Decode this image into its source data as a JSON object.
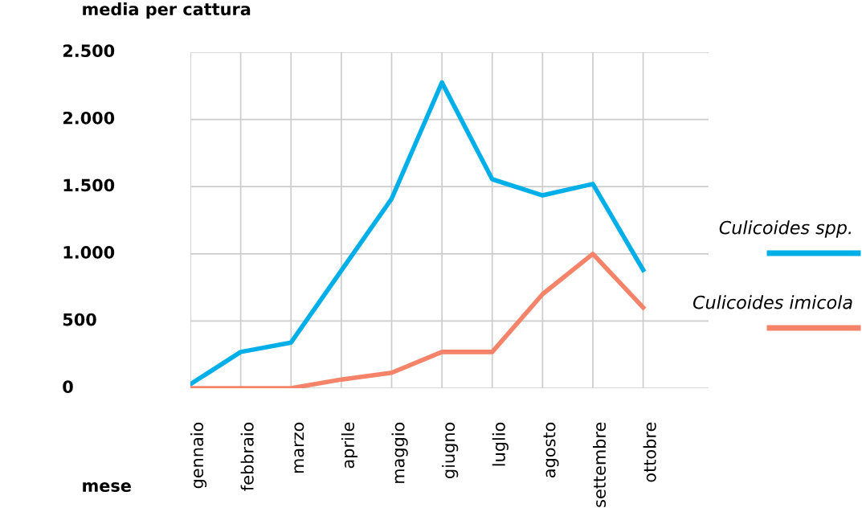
{
  "chart_data": {
    "type": "line",
    "ylabel": "media per cattura",
    "xlabel": "mese",
    "categories": [
      "gennaio",
      "febbraio",
      "marzo",
      "aprile",
      "maggio",
      "giugno",
      "luglio",
      "agosto",
      "settembre",
      "ottobre"
    ],
    "series": [
      {
        "name": "Culicoides spp.",
        "color": "#00aee8",
        "values": [
          30,
          270,
          340,
          875,
          1410,
          2275,
          1555,
          1435,
          1520,
          880
        ]
      },
      {
        "name": "Culicoides imicola",
        "color": "#f4836a",
        "values": [
          0,
          0,
          0,
          65,
          115,
          270,
          270,
          700,
          1000,
          600
        ]
      }
    ],
    "ylim": [
      0,
      2500
    ],
    "yticks": [
      {
        "value": 0,
        "label": "0"
      },
      {
        "value": 500,
        "label": "500"
      },
      {
        "value": 1000,
        "label": "1.000"
      },
      {
        "value": 1500,
        "label": "1.500"
      },
      {
        "value": 2000,
        "label": "2.000"
      },
      {
        "value": 2500,
        "label": "2.500"
      }
    ],
    "grid": true,
    "legend": "right",
    "marker": "none",
    "line_style": "solid"
  }
}
